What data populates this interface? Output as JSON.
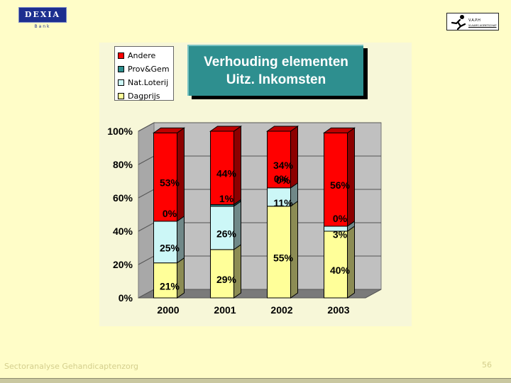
{
  "header": {
    "brand_text": "DEXIA",
    "brand_sub": "Bank",
    "partner_name": "V.A.P.H",
    "partner_sub": "VLAAMS AGENTSCHAP"
  },
  "footer": {
    "text": "Sectoranalyse Gehandicaptenzorg",
    "page_number": "56"
  },
  "colors": {
    "background": "#fffdc8",
    "title_box": "#2e8f8f",
    "andere": "#ff0000",
    "prov_gem": "#2e8f8f",
    "nat_loterij": "#ccf7f7",
    "dagprijs": "#ffff99"
  },
  "chart_data": {
    "type": "bar",
    "stacked": true,
    "percent": true,
    "title": [
      "Verhouding elementen",
      "Uitz. Inkomsten"
    ],
    "categories": [
      "2000",
      "2001",
      "2002",
      "2003"
    ],
    "y_ticks": [
      "0%",
      "20%",
      "40%",
      "60%",
      "80%",
      "100%"
    ],
    "ylim": [
      0,
      100
    ],
    "legend_position": "top-left",
    "legend": [
      "Andere",
      "Prov&Gem",
      "Nat.Loterij",
      "Dagprijs"
    ],
    "series": [
      {
        "name": "Dagprijs",
        "color": "#ffff99",
        "values": [
          21,
          29,
          55,
          40
        ],
        "labels": [
          "21%",
          "29%",
          "55%",
          "40%"
        ]
      },
      {
        "name": "Nat.Loterij",
        "color": "#ccf7f7",
        "values": [
          25,
          26,
          11,
          3
        ],
        "labels": [
          "25%",
          "26%",
          "11%",
          "3%"
        ]
      },
      {
        "name": "Prov&Gem",
        "color": "#2e8f8f",
        "values": [
          0,
          1,
          0,
          0
        ],
        "labels": [
          "0%",
          "1%",
          "0%",
          "0%"
        ]
      },
      {
        "name": "Andere",
        "color": "#ff0000",
        "values": [
          53,
          44,
          34,
          56
        ],
        "labels": [
          "53%",
          "44%",
          "34%",
          "56%"
        ]
      }
    ],
    "extra_labels": [
      {
        "category": "2002",
        "text": "0%"
      }
    ]
  }
}
